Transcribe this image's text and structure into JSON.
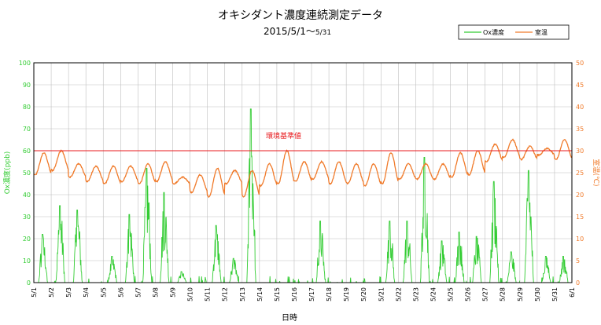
{
  "chart_data": {
    "type": "line",
    "title": "オキシダント濃度連続測定データ",
    "subtitle_main": "2015/5/1～",
    "subtitle_end": "5/31",
    "xlabel": "日時",
    "ylabel_left": "Ox濃度(ppb)",
    "ylabel_right": "室温(℃)",
    "ylim_left": [
      0,
      100
    ],
    "ylim_right": [
      0,
      50
    ],
    "yticks_left": [
      "0",
      "10",
      "20",
      "30",
      "40",
      "50",
      "60",
      "70",
      "80",
      "90",
      "100"
    ],
    "yticks_right": [
      "0",
      "5",
      "10",
      "15",
      "20",
      "25",
      "30",
      "35",
      "40",
      "45",
      "50"
    ],
    "x": [
      "5/1",
      "5/2",
      "5/3",
      "5/4",
      "5/5",
      "5/6",
      "5/7",
      "5/8",
      "5/9",
      "5/10",
      "5/11",
      "5/12",
      "5/13",
      "5/14",
      "5/15",
      "5/16",
      "5/17",
      "5/18",
      "5/19",
      "5/20",
      "5/21",
      "5/22",
      "5/23",
      "5/24",
      "5/25",
      "5/26",
      "5/27",
      "5/28",
      "5/29",
      "5/30",
      "5/31",
      "6/1"
    ],
    "grid": true,
    "legend_position": "top-right",
    "reference_line": {
      "label": "環境基準値",
      "value": 60,
      "axis": "left",
      "color": "#e8191d"
    },
    "series": [
      {
        "name": "Ox濃度",
        "axis": "left",
        "color": "#33cc33",
        "daily_peak_ppb": [
          22,
          35,
          33,
          3,
          12,
          31,
          52,
          41,
          5,
          1,
          26,
          11,
          79,
          1,
          1,
          1,
          28,
          1,
          1,
          1,
          28,
          28,
          57,
          19,
          23,
          21,
          46,
          14,
          51,
          12,
          12
        ]
      },
      {
        "name": "室温",
        "axis": "right",
        "color": "#f07a2a",
        "daily_min_c": [
          24.5,
          25.5,
          24,
          23,
          22.5,
          23,
          22.5,
          23,
          22.5,
          20.5,
          19.5,
          22.5,
          19.5,
          22,
          22.5,
          23,
          23.5,
          22.5,
          22.5,
          22,
          22.5,
          23.5,
          23.5,
          23.5,
          24,
          24.5,
          27.5,
          28.5,
          28,
          29,
          28
        ],
        "daily_max_c": [
          29.5,
          30,
          27,
          26.5,
          26.5,
          26.5,
          27,
          27.5,
          24,
          24.5,
          26,
          25.5,
          25.5,
          27,
          30,
          27.5,
          27.5,
          27.5,
          27,
          27,
          29.5,
          27,
          27,
          27,
          29.5,
          30,
          31.5,
          32.5,
          31,
          30.5,
          32.5
        ]
      }
    ]
  }
}
